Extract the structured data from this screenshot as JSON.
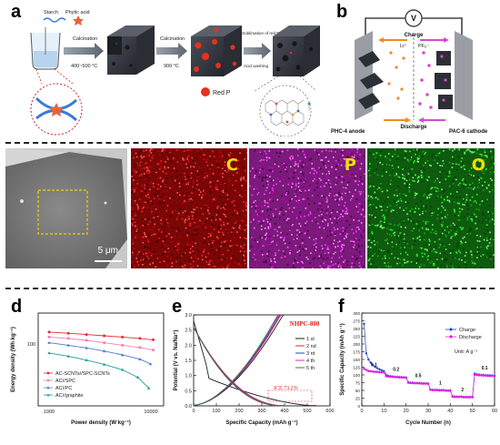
{
  "figure": {
    "panel_a": {
      "label": "a",
      "inputs": [
        "Starch",
        "Phytic acid"
      ],
      "steps": [
        "Calcination",
        "400~500 °C",
        "Calcination",
        "900 °C",
        "Sublimation of red P",
        "Acid washing"
      ],
      "legend": "Red P"
    },
    "panel_b": {
      "label": "b",
      "meter": "V",
      "charge": "Charge",
      "discharge": "Discharge",
      "li_ion": "Li⁺",
      "pf_ion": "PF₆⁻",
      "anode": "PHC-4 anode",
      "cathode": "PAC-6 cathode"
    },
    "panel_c": {
      "label": "c",
      "scale_bar": "5 μm",
      "maps": [
        "C",
        "P",
        "O"
      ],
      "colors": {
        "C": "#e01010",
        "P": "#e020e0",
        "O": "#18c018"
      }
    },
    "panel_d": {
      "label": "d",
      "legend": [
        "AC-SCNTs//SPC-SCNTs",
        "AC//SPC",
        "AC//PC",
        "AC//graphite"
      ]
    },
    "panel_e": {
      "label": "e",
      "title": "NHPC-800",
      "legend": [
        "1 st",
        "2 nd",
        "3 rd",
        "4 th",
        "5 th"
      ],
      "annotation": "ICE 73.2%"
    },
    "panel_f": {
      "label": "f",
      "legend": [
        "Charge",
        "Discharge"
      ],
      "unit": "Unit: A g⁻¹",
      "rate_labels": [
        "0.1",
        "0.2",
        "0.5",
        "1",
        "2",
        "0.1"
      ]
    }
  },
  "chart_data": [
    {
      "type": "line",
      "panel": "d",
      "xlabel": "Power density (W kg⁻¹)",
      "ylabel": "Energy density (Wh kg⁻¹)",
      "xscale": "log",
      "yscale": "log",
      "xlim": [
        1000,
        10000
      ],
      "ylim": [
        10,
        300
      ],
      "x_ticks": [
        "1000",
        "10000"
      ],
      "y_ticks": [
        "100"
      ],
      "legend_position": "lower-left",
      "series": [
        {
          "name": "AC-SCNTs//SPC-SCNTs",
          "color": "#e03030",
          "marker": "circle",
          "points": [
            [
              1000,
              180
            ],
            [
              1500,
              175
            ],
            [
              2200,
              170
            ],
            [
              3200,
              165
            ],
            [
              4700,
              160
            ],
            [
              6800,
              155
            ],
            [
              9000,
              150
            ]
          ]
        },
        {
          "name": "AC//SPC",
          "color": "#ff7ab0",
          "marker": "circle",
          "points": [
            [
              1000,
              160
            ],
            [
              1500,
              155
            ],
            [
              2200,
              148
            ],
            [
              3200,
              140
            ],
            [
              4700,
              132
            ],
            [
              6800,
              125
            ],
            [
              9000,
              118
            ]
          ]
        },
        {
          "name": "AC//PC",
          "color": "#4a7ad8",
          "marker": "triangle",
          "points": [
            [
              1000,
              140
            ],
            [
              1500,
              132
            ],
            [
              2200,
              124
            ],
            [
              3200,
              115
            ],
            [
              4700,
              105
            ],
            [
              6800,
              95
            ],
            [
              8500,
              85
            ]
          ]
        },
        {
          "name": "AC//graphite",
          "color": "#20a090",
          "marker": "triangle",
          "points": [
            [
              1000,
              110
            ],
            [
              1500,
              102
            ],
            [
              2200,
              93
            ],
            [
              3200,
              84
            ],
            [
              4700,
              74
            ],
            [
              6500,
              62
            ],
            [
              8200,
              48
            ]
          ]
        }
      ]
    },
    {
      "type": "line",
      "panel": "e",
      "title": "NHPC-800",
      "xlabel": "Specific Capacity (mAh g⁻¹)",
      "ylabel": "Potential (V vs. Na/Na⁺)",
      "xlim": [
        0,
        600
      ],
      "ylim": [
        0,
        3.0
      ],
      "x_ticks": [
        0,
        100,
        200,
        300,
        400,
        500,
        600
      ],
      "y_ticks": [
        0.0,
        0.5,
        1.0,
        1.5,
        2.0,
        2.5,
        3.0
      ],
      "legend_position": "right",
      "annotation": "ICE 73.2%",
      "series": [
        {
          "name": "1 st",
          "color": "#1a1a1a",
          "discharge_end": 540,
          "charge_end": 395
        },
        {
          "name": "2 nd",
          "color": "#e02020",
          "discharge_end": 410,
          "charge_end": 385
        },
        {
          "name": "3 rd",
          "color": "#2040e0",
          "discharge_end": 400,
          "charge_end": 380
        },
        {
          "name": "4 th",
          "color": "#e020e0",
          "discharge_end": 395,
          "charge_end": 375
        },
        {
          "name": "5 th",
          "color": "#308030",
          "discharge_end": 390,
          "charge_end": 372
        }
      ]
    },
    {
      "type": "scatter",
      "panel": "f",
      "xlabel": "Cycle Number (n)",
      "ylabel": "Specific Capacity (mAh g⁻¹)",
      "xlim": [
        0,
        60
      ],
      "ylim": [
        0,
        300
      ],
      "x_ticks": [
        0,
        10,
        20,
        30,
        40,
        50,
        60
      ],
      "y_ticks": [
        0,
        25,
        50,
        75,
        100,
        125,
        150,
        175,
        200,
        225,
        250,
        275,
        300
      ],
      "legend_position": "top-right",
      "rates": [
        {
          "label": "0.1",
          "cycles": [
            1,
            10
          ],
          "capacity": 110
        },
        {
          "label": "0.2",
          "cycles": [
            11,
            20
          ],
          "capacity": 95
        },
        {
          "label": "0.5",
          "cycles": [
            21,
            30
          ],
          "capacity": 75
        },
        {
          "label": "1",
          "cycles": [
            31,
            40
          ],
          "capacity": 52
        },
        {
          "label": "2",
          "cycles": [
            41,
            50
          ],
          "capacity": 30
        },
        {
          "label": "0.1",
          "cycles": [
            51,
            60
          ],
          "capacity": 100
        }
      ],
      "series": [
        {
          "name": "Charge",
          "color": "#2040e0",
          "marker": "diamond",
          "values": [
            265,
            170,
            150,
            140,
            132,
            126,
            122,
            118,
            115,
            112,
            100,
            97,
            96,
            95,
            94,
            94,
            93,
            93,
            92,
            92,
            76,
            75,
            75,
            74,
            74,
            74,
            73,
            73,
            73,
            72,
            53,
            52,
            52,
            52,
            51,
            51,
            51,
            50,
            50,
            50,
            31,
            30,
            30,
            30,
            30,
            29,
            29,
            29,
            29,
            29,
            104,
            102,
            101,
            100,
            100,
            99,
            99,
            99,
            98,
            98
          ]
        },
        {
          "name": "Discharge",
          "color": "#e020e0",
          "marker": "circle",
          "values": [
            120,
            116,
            113,
            112,
            111,
            110,
            110,
            109,
            109,
            108,
            96,
            95,
            94,
            94,
            93,
            93,
            92,
            92,
            92,
            91,
            75,
            74,
            74,
            73,
            73,
            73,
            72,
            72,
            72,
            72,
            52,
            51,
            51,
            51,
            50,
            50,
            50,
            49,
            49,
            49,
            30,
            29,
            29,
            29,
            29,
            28,
            28,
            28,
            28,
            28,
            101,
            100,
            99,
            99,
            98,
            98,
            97,
            97,
            97,
            96
          ]
        }
      ]
    }
  ]
}
